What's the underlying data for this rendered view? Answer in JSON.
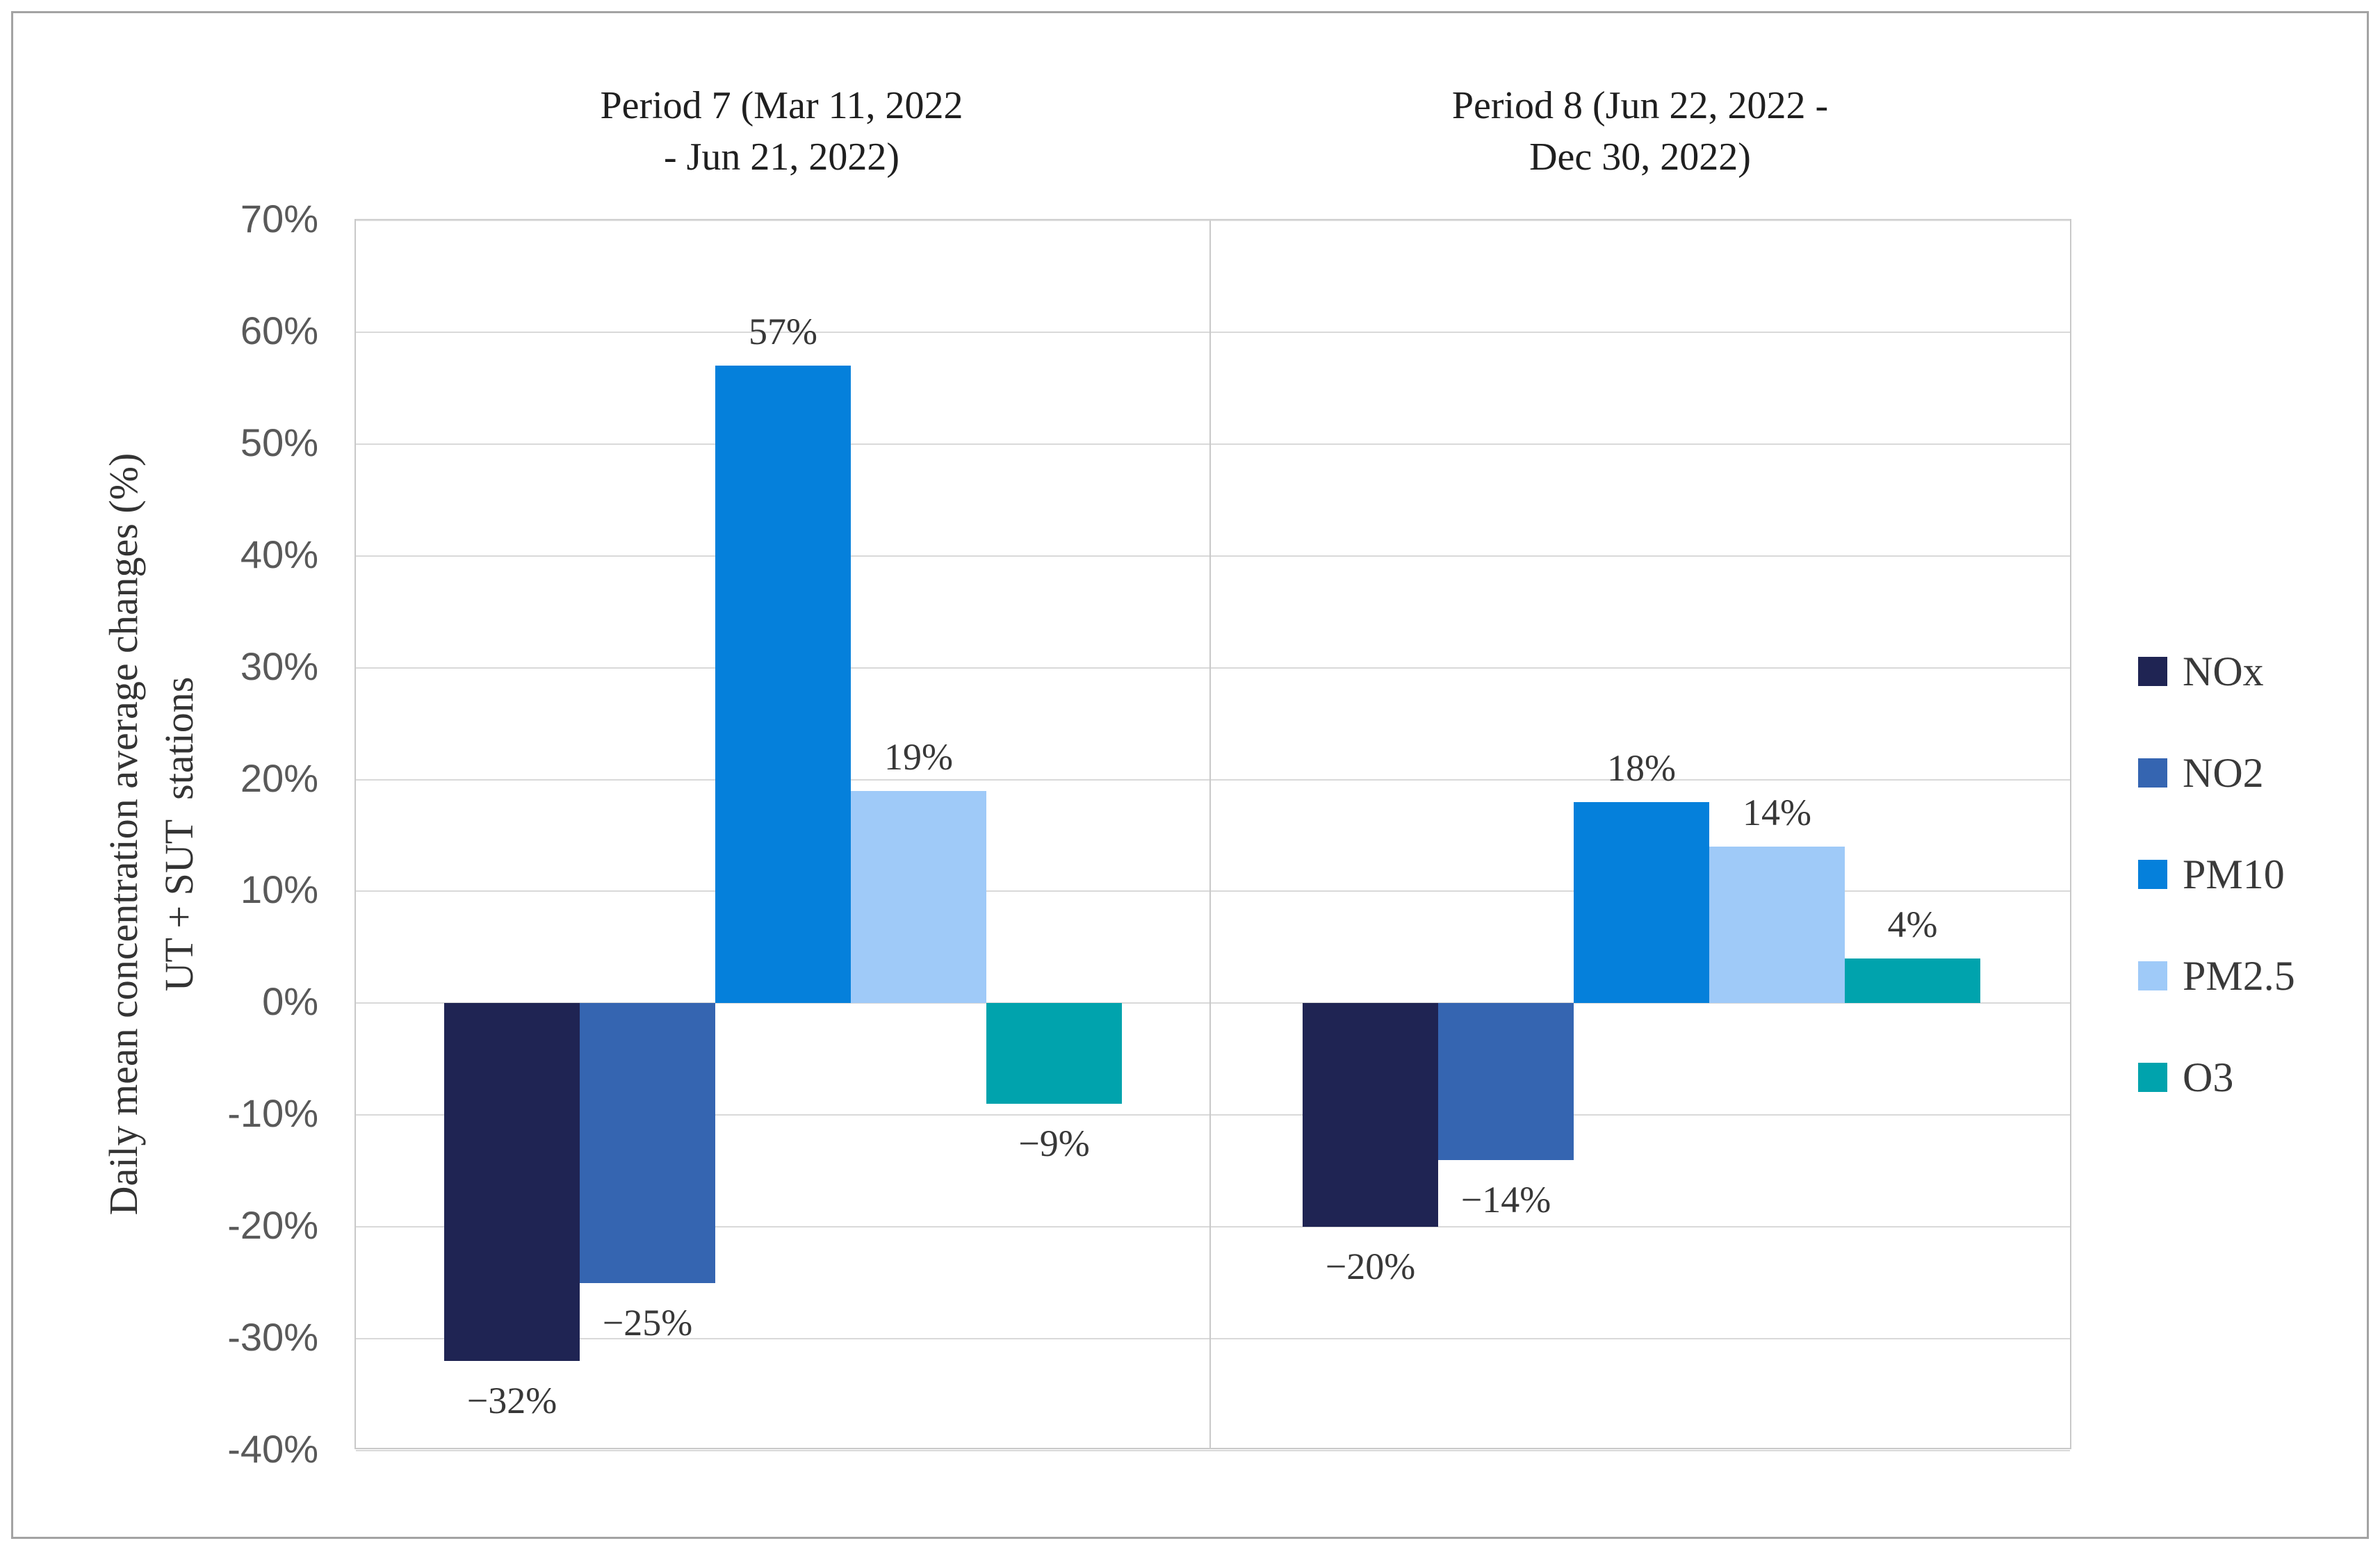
{
  "figure": {
    "background": "#FFFFFF",
    "border_color": "#A3A3A3",
    "gridline_color": "#D9D9D9",
    "plot_border_color": "#C9C9C9",
    "tick_label_color": "#595959",
    "data_label_color": "#383838"
  },
  "chart_data": {
    "type": "bar",
    "categories": [
      "Period 7 (Mar 11, 2022 - Jun 21, 2022)",
      "Period 8 (Jun 22, 2022 - Dec 30, 2022)"
    ],
    "category_title_lines": [
      [
        "Period 7 (Mar 11, 2022",
        "- Jun 21, 2022)"
      ],
      [
        "Period 8 (Jun 22, 2022 -",
        "Dec 30, 2022)"
      ]
    ],
    "series": [
      {
        "name": "NOx",
        "color": "#1F2453",
        "values": [
          -32,
          -20
        ],
        "labels": [
          "−32%",
          "−20%"
        ]
      },
      {
        "name": "NO2",
        "color": "#3565B1",
        "values": [
          -25,
          -14
        ],
        "labels": [
          "−25%",
          "−14%"
        ]
      },
      {
        "name": "PM10",
        "color": "#0580DB",
        "values": [
          57,
          18
        ],
        "labels": [
          "57%",
          "18%"
        ]
      },
      {
        "name": "PM2.5",
        "color": "#9FCAF8",
        "values": [
          19,
          14
        ],
        "labels": [
          "19%",
          "14%"
        ]
      },
      {
        "name": "O3",
        "color": "#00A3AD",
        "values": [
          -9,
          4
        ],
        "labels": [
          "−9%",
          "4%"
        ]
      }
    ],
    "ylabel_lines": [
      "Daily mean concentration average changes (%)",
      "UT + SUT  stations"
    ],
    "ylabel": "Daily mean concentration average changes (%) UT + SUT stations",
    "ylim": [
      -40,
      70
    ],
    "ytick_step": 10,
    "ytick_labels": [
      "70%",
      "60%",
      "50%",
      "40%",
      "30%",
      "20%",
      "10%",
      "0%",
      "-10%",
      "-20%",
      "-30%",
      "-40%"
    ],
    "grid": true,
    "legend_position": "right"
  }
}
